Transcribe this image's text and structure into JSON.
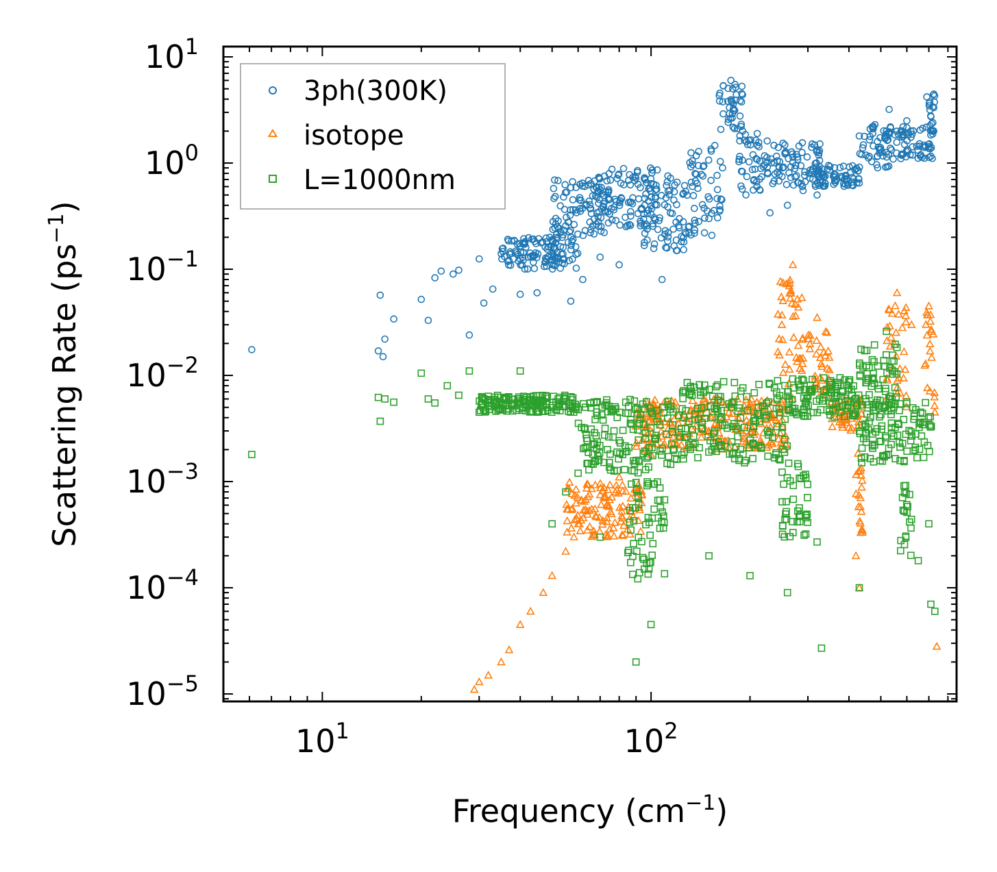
{
  "chart_data": {
    "type": "scatter",
    "xscale": "log",
    "yscale": "log",
    "xlim": [
      5,
      850
    ],
    "ylim": [
      8.5e-06,
      12.5
    ],
    "title": "",
    "xlabel": "Frequency",
    "xlabel_unit_base": "cm",
    "xlabel_unit_exp": "−1",
    "ylabel": "Scattering Rate",
    "ylabel_unit_base": "ps",
    "ylabel_unit_exp": "−1",
    "x_ticks": [
      {
        "value": 10,
        "base": "10",
        "exp": "1"
      },
      {
        "value": 100,
        "base": "10",
        "exp": "2"
      }
    ],
    "y_ticks": [
      {
        "value": 10,
        "base": "10",
        "exp": "1"
      },
      {
        "value": 1,
        "base": "10",
        "exp": "0"
      },
      {
        "value": 0.1,
        "base": "10",
        "exp": "−1"
      },
      {
        "value": 0.01,
        "base": "10",
        "exp": "−2"
      },
      {
        "value": 0.001,
        "base": "10",
        "exp": "−3"
      },
      {
        "value": 0.0001,
        "base": "10",
        "exp": "−4"
      },
      {
        "value": 1e-05,
        "base": "10",
        "exp": "−5"
      }
    ],
    "legend_position": "top-left",
    "series": [
      {
        "name": "3ph(300K)",
        "marker": "circle",
        "color": "#1f77b4",
        "points": [
          [
            6.1,
            0.0175
          ],
          [
            14.8,
            0.017
          ],
          [
            15.0,
            0.057
          ],
          [
            15.3,
            0.015
          ],
          [
            15.5,
            0.022
          ],
          [
            16.5,
            0.034
          ],
          [
            20,
            0.052
          ],
          [
            21,
            0.033
          ],
          [
            22,
            0.083
          ],
          [
            23,
            0.096
          ],
          [
            25,
            0.09
          ],
          [
            26,
            0.098
          ],
          [
            28,
            0.024
          ],
          [
            30,
            0.125
          ],
          [
            31,
            0.048
          ],
          [
            33,
            0.065
          ],
          [
            35,
            0.14
          ],
          [
            37,
            0.12
          ],
          [
            40,
            0.058
          ],
          [
            45,
            0.06
          ],
          [
            50,
            0.11
          ],
          [
            57,
            0.05
          ],
          [
            62,
            0.08
          ],
          [
            70,
            0.13
          ],
          [
            80,
            0.11
          ],
          [
            108,
            0.08
          ],
          [
            120,
            0.15
          ],
          [
            130,
            0.25
          ],
          [
            150,
            0.3
          ],
          [
            165,
            0.9
          ],
          [
            175,
            6.0
          ],
          [
            180,
            5.5
          ],
          [
            190,
            2.0
          ],
          [
            210,
            0.6
          ],
          [
            230,
            0.34
          ],
          [
            260,
            0.4
          ],
          [
            290,
            0.55
          ],
          [
            320,
            0.5
          ],
          [
            380,
            0.75
          ],
          [
            430,
            1.8
          ],
          [
            480,
            2.3
          ],
          [
            530,
            3.2
          ],
          [
            600,
            2.5
          ],
          [
            690,
            4.2
          ],
          [
            720,
            2.4
          ]
        ],
        "bands": [
          {
            "x": [
              35,
              60
            ],
            "y": [
              0.1,
              0.2
            ]
          },
          {
            "x": [
              50,
              75
            ],
            "y": [
              0.2,
              0.7
            ]
          },
          {
            "x": [
              65,
              105
            ],
            "y": [
              0.25,
              0.9
            ]
          },
          {
            "x": [
              95,
              130
            ],
            "y": [
              0.15,
              0.8
            ]
          },
          {
            "x": [
              130,
              165
            ],
            "y": [
              0.2,
              1.6
            ]
          },
          {
            "x": [
              160,
              190
            ],
            "y": [
              2.0,
              5.5
            ]
          },
          {
            "x": [
              185,
              230
            ],
            "y": [
              0.5,
              2.0
            ]
          },
          {
            "x": [
              230,
              330
            ],
            "y": [
              0.6,
              1.6
            ]
          },
          {
            "x": [
              320,
              430
            ],
            "y": [
              0.6,
              0.95
            ]
          },
          {
            "x": [
              430,
              560
            ],
            "y": [
              0.9,
              2.4
            ]
          },
          {
            "x": [
              560,
              720
            ],
            "y": [
              1.1,
              2.2
            ]
          },
          {
            "x": [
              700,
              730
            ],
            "y": [
              1.8,
              4.6
            ]
          }
        ]
      },
      {
        "name": "isotope",
        "marker": "triangle",
        "color": "#ff7f0e",
        "points": [
          [
            29,
            1.1e-05
          ],
          [
            30,
            1.3e-05
          ],
          [
            32,
            1.5e-05
          ],
          [
            35,
            2e-05
          ],
          [
            37,
            2.6e-05
          ],
          [
            40,
            4.5e-05
          ],
          [
            43,
            6e-05
          ],
          [
            47,
            9e-05
          ],
          [
            50,
            0.00013
          ],
          [
            55,
            0.00022
          ],
          [
            60,
            0.0004
          ],
          [
            70,
            0.00075
          ],
          [
            80,
            0.0011
          ],
          [
            100,
            0.0018
          ],
          [
            150,
            0.003
          ],
          [
            200,
            0.005
          ],
          [
            250,
            0.03
          ],
          [
            270,
            0.11
          ],
          [
            320,
            0.035
          ],
          [
            420,
            0.0002
          ],
          [
            430,
            0.0001
          ],
          [
            520,
            0.006
          ],
          [
            560,
            0.06
          ],
          [
            620,
            0.03
          ],
          [
            700,
            0.045
          ],
          [
            730,
            0.0045
          ],
          [
            740,
            2.8e-05
          ]
        ],
        "bands": [
          {
            "x": [
              55,
              95
            ],
            "y": [
              0.0003,
              0.001
            ]
          },
          {
            "x": [
              90,
              260
            ],
            "y": [
              0.002,
              0.006
            ]
          },
          {
            "x": [
              240,
              290
            ],
            "y": [
              0.006,
              0.08
            ]
          },
          {
            "x": [
              300,
              350
            ],
            "y": [
              0.006,
              0.03
            ]
          },
          {
            "x": [
              350,
              440
            ],
            "y": [
              0.003,
              0.006
            ]
          },
          {
            "x": [
              420,
              440
            ],
            "y": [
              0.0003,
              0.002
            ]
          },
          {
            "x": [
              520,
              600
            ],
            "y": [
              0.005,
              0.05
            ]
          },
          {
            "x": [
              680,
              730
            ],
            "y": [
              0.005,
              0.04
            ]
          }
        ]
      },
      {
        "name": "L=1000nm",
        "marker": "square",
        "color": "#2ca02c",
        "points": [
          [
            6.1,
            0.0018
          ],
          [
            14.8,
            0.0062
          ],
          [
            15.0,
            0.0037
          ],
          [
            15.5,
            0.006
          ],
          [
            16.5,
            0.0056
          ],
          [
            20,
            0.0105
          ],
          [
            21,
            0.006
          ],
          [
            22,
            0.0055
          ],
          [
            24,
            0.008
          ],
          [
            26,
            0.0065
          ],
          [
            28,
            0.011
          ],
          [
            30,
            0.0045
          ],
          [
            35,
            0.0055
          ],
          [
            40,
            0.011
          ],
          [
            45,
            0.0055
          ],
          [
            50,
            0.0004
          ],
          [
            55,
            0.0008
          ],
          [
            60,
            0.0012
          ],
          [
            70,
            0.0003
          ],
          [
            90,
            2e-05
          ],
          [
            100,
            4.5e-05
          ],
          [
            150,
            0.0002
          ],
          [
            200,
            0.00013
          ],
          [
            260,
            9e-05
          ],
          [
            320,
            0.00027
          ],
          [
            330,
            2.7e-05
          ],
          [
            430,
            0.0001
          ],
          [
            520,
            0.026
          ],
          [
            650,
            0.00018
          ],
          [
            700,
            0.0004
          ],
          [
            710,
            7e-05
          ],
          [
            730,
            6e-05
          ]
        ],
        "bands": [
          {
            "x": [
              30,
              60
            ],
            "y": [
              0.0045,
              0.0065
            ]
          },
          {
            "x": [
              60,
              120
            ],
            "y": [
              0.0012,
              0.006
            ]
          },
          {
            "x": [
              85,
              110
            ],
            "y": [
              0.00012,
              0.001
            ]
          },
          {
            "x": [
              120,
              260
            ],
            "y": [
              0.0015,
              0.009
            ]
          },
          {
            "x": [
              250,
              300
            ],
            "y": [
              0.0003,
              0.0015
            ]
          },
          {
            "x": [
              260,
              430
            ],
            "y": [
              0.004,
              0.0095
            ]
          },
          {
            "x": [
              430,
              560
            ],
            "y": [
              0.005,
              0.02
            ]
          },
          {
            "x": [
              430,
              720
            ],
            "y": [
              0.0015,
              0.006
            ]
          },
          {
            "x": [
              570,
              620
            ],
            "y": [
              0.0002,
              0.001
            ]
          }
        ]
      }
    ]
  }
}
